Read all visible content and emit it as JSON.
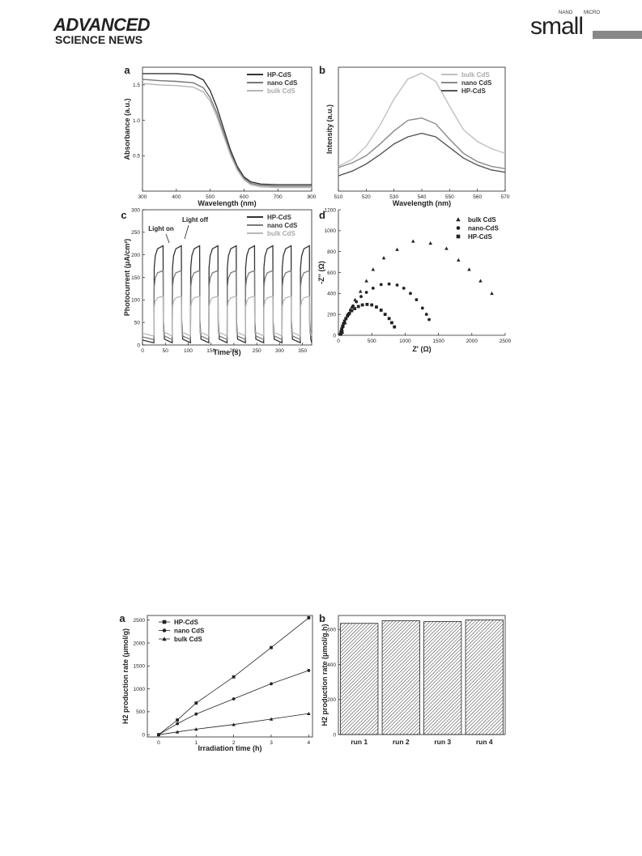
{
  "header": {
    "brand_top": "ADVANCED",
    "brand_bottom": "SCIENCE NEWS",
    "journal": "small",
    "nano": "NANO",
    "micro": "MICRO"
  },
  "chart_data": [
    {
      "type": "line",
      "panel_label": "a",
      "xlabel": "Wavelength (nm)",
      "ylabel": "Absorbance (a.u.)",
      "xlim": [
        300,
        800
      ],
      "ylim": [
        0,
        1.75
      ],
      "xticks": [
        300,
        400,
        500,
        600,
        700,
        800
      ],
      "yticks": [
        0.5,
        1.0,
        1.5
      ],
      "ytick_labels": [
        "0.5",
        "1.0",
        "1.5"
      ],
      "legend_position": "top-right",
      "series": [
        {
          "name": "HP-CdS",
          "color": "#333333",
          "x": [
            300,
            350,
            400,
            450,
            480,
            500,
            520,
            540,
            560,
            580,
            600,
            620,
            650,
            700,
            800
          ],
          "y": [
            1.66,
            1.66,
            1.66,
            1.64,
            1.57,
            1.42,
            1.18,
            0.88,
            0.58,
            0.35,
            0.2,
            0.13,
            0.1,
            0.09,
            0.09
          ]
        },
        {
          "name": "nano CdS",
          "color": "#777777",
          "x": [
            300,
            350,
            400,
            450,
            480,
            500,
            520,
            540,
            560,
            580,
            600,
            620,
            650,
            700,
            800
          ],
          "y": [
            1.58,
            1.56,
            1.55,
            1.53,
            1.46,
            1.32,
            1.1,
            0.82,
            0.54,
            0.32,
            0.18,
            0.11,
            0.08,
            0.07,
            0.07
          ]
        },
        {
          "name": "bulk CdS",
          "color": "#b5b5b5",
          "x": [
            300,
            350,
            400,
            450,
            480,
            500,
            520,
            540,
            560,
            580,
            600,
            620,
            650,
            700,
            800
          ],
          "y": [
            1.52,
            1.5,
            1.49,
            1.47,
            1.4,
            1.27,
            1.05,
            0.78,
            0.51,
            0.3,
            0.16,
            0.09,
            0.06,
            0.05,
            0.05
          ]
        }
      ]
    },
    {
      "type": "line",
      "panel_label": "b",
      "xlabel": "Wavelength (nm)",
      "ylabel": "Intensity (a.u.)",
      "xlim": [
        510,
        570
      ],
      "xticks": [
        510,
        520,
        530,
        540,
        550,
        560,
        570
      ],
      "legend_position": "top-right",
      "series": [
        {
          "name": "bulk CdS",
          "color": "#c0c0c0",
          "x": [
            510,
            515,
            520,
            525,
            530,
            535,
            540,
            545,
            550,
            555,
            560,
            565,
            570
          ],
          "y": [
            0.21,
            0.27,
            0.38,
            0.56,
            0.78,
            0.95,
            1.0,
            0.93,
            0.72,
            0.52,
            0.42,
            0.36,
            0.32
          ]
        },
        {
          "name": "nano CdS",
          "color": "#8a8a8a",
          "x": [
            510,
            515,
            520,
            525,
            530,
            535,
            540,
            545,
            550,
            555,
            560,
            565,
            570
          ],
          "y": [
            0.2,
            0.24,
            0.3,
            0.4,
            0.51,
            0.6,
            0.62,
            0.57,
            0.44,
            0.32,
            0.25,
            0.21,
            0.19
          ]
        },
        {
          "name": "HP-CdS",
          "color": "#555555",
          "x": [
            510,
            515,
            520,
            525,
            530,
            535,
            540,
            545,
            550,
            555,
            560,
            565,
            570
          ],
          "y": [
            0.13,
            0.17,
            0.23,
            0.31,
            0.4,
            0.46,
            0.49,
            0.46,
            0.37,
            0.28,
            0.22,
            0.18,
            0.16
          ]
        }
      ]
    },
    {
      "type": "line",
      "panel_label": "c",
      "xlabel": "Time (s)",
      "ylabel": "Photocurrent (μA/cm²)",
      "xlim": [
        0,
        370
      ],
      "ylim": [
        0,
        300
      ],
      "xticks": [
        0,
        50,
        100,
        150,
        200,
        250,
        300,
        350
      ],
      "yticks": [
        0,
        50,
        100,
        150,
        200,
        250,
        300
      ],
      "legend_position": "top-right",
      "annotations": [
        "Light on",
        "Light off"
      ],
      "cycle": {
        "first_on": 25,
        "period": 40,
        "on_duration": 20,
        "count": 9
      },
      "series": [
        {
          "name": "HP-CdS",
          "color": "#333333",
          "on_level": 220,
          "dark_level": 5
        },
        {
          "name": "nano CdS",
          "color": "#7a7a7a",
          "on_level": 165,
          "dark_level": 12
        },
        {
          "name": "bulk CdS",
          "color": "#b8b8b8",
          "on_level": 108,
          "dark_level": 20
        }
      ]
    },
    {
      "type": "scatter",
      "panel_label": "d",
      "xlabel": "Z' (Ω)",
      "ylabel": "-Z'' (Ω)",
      "xlim": [
        0,
        2500
      ],
      "ylim": [
        0,
        1200
      ],
      "xticks": [
        0,
        500,
        1000,
        1500,
        2000,
        2500
      ],
      "yticks": [
        0,
        200,
        400,
        600,
        800,
        1000,
        1200
      ],
      "legend_position": "top-right",
      "series": [
        {
          "name": "bulk CdS",
          "marker": "triangle",
          "x": [
            60,
            100,
            150,
            200,
            250,
            330,
            420,
            520,
            680,
            880,
            1120,
            1380,
            1620,
            1800,
            1960,
            2130,
            2300
          ],
          "y": [
            30,
            120,
            200,
            270,
            340,
            420,
            520,
            630,
            740,
            820,
            900,
            880,
            830,
            720,
            630,
            520,
            400
          ]
        },
        {
          "name": "nano-CdS",
          "marker": "circle",
          "x": [
            40,
            55,
            70,
            90,
            115,
            145,
            180,
            220,
            270,
            340,
            420,
            520,
            640,
            760,
            880,
            980,
            1080,
            1170,
            1260,
            1320,
            1360
          ],
          "y": [
            10,
            40,
            80,
            120,
            160,
            200,
            240,
            280,
            320,
            370,
            410,
            450,
            485,
            490,
            480,
            450,
            400,
            340,
            260,
            200,
            150
          ]
        },
        {
          "name": "HP-CdS",
          "marker": "square",
          "x": [
            30,
            40,
            50,
            62,
            76,
            92,
            112,
            136,
            165,
            200,
            245,
            300,
            360,
            430,
            500,
            570,
            640,
            700,
            760,
            800,
            840
          ],
          "y": [
            10,
            35,
            60,
            85,
            110,
            135,
            160,
            185,
            210,
            235,
            255,
            275,
            290,
            295,
            290,
            270,
            240,
            200,
            160,
            120,
            80
          ]
        }
      ]
    },
    {
      "type": "line",
      "panel_label": "a",
      "xlabel": "Irradiation time (h)",
      "ylabel": "H2 production rate (μmol/g)",
      "xlim": [
        -0.3,
        4.1
      ],
      "ylim": [
        -50,
        2600
      ],
      "xticks": [
        0,
        1,
        2,
        3,
        4
      ],
      "yticks": [
        0,
        500,
        1000,
        1500,
        2000,
        2500
      ],
      "legend_position": "top-left",
      "series": [
        {
          "name": "HP-CdS",
          "marker": "square",
          "x": [
            0,
            0.5,
            1,
            2,
            3,
            4
          ],
          "y": [
            0,
            320,
            690,
            1260,
            1900,
            2550
          ]
        },
        {
          "name": "nano CdS",
          "marker": "circle",
          "x": [
            0,
            0.5,
            1,
            2,
            3,
            4
          ],
          "y": [
            0,
            240,
            450,
            780,
            1110,
            1400
          ]
        },
        {
          "name": "bulk CdS",
          "marker": "triangle",
          "x": [
            0,
            0.5,
            1,
            2,
            3,
            4
          ],
          "y": [
            0,
            60,
            120,
            220,
            340,
            460
          ]
        }
      ]
    },
    {
      "type": "bar",
      "panel_label": "b",
      "xlabel": "",
      "ylabel": "H2 production rate (μmol/g.h)",
      "categories": [
        "run 1",
        "run 2",
        "run 3",
        "run 4"
      ],
      "values": [
        635,
        650,
        645,
        655
      ],
      "ylim": [
        0,
        680
      ],
      "yticks": [
        0,
        200,
        400,
        600
      ]
    }
  ]
}
